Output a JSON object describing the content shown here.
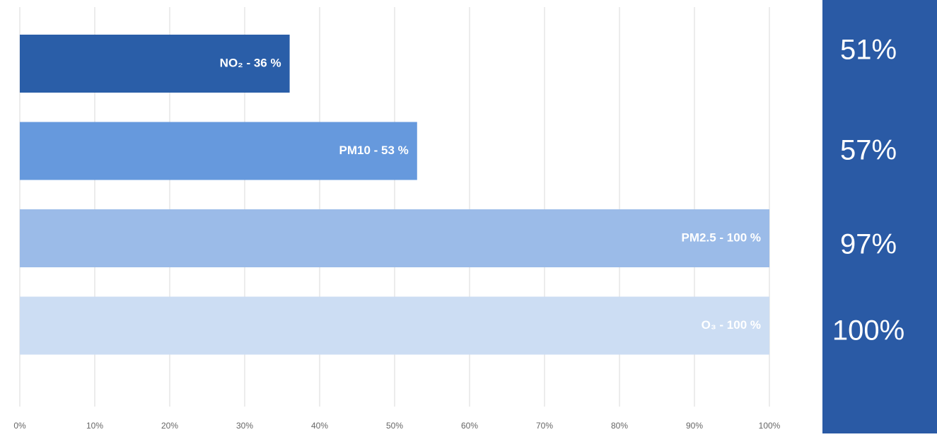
{
  "chart_data": {
    "type": "barh",
    "values": [
      36,
      53,
      100,
      100
    ],
    "value_labels": [
      "NO₂ - 36 %",
      "PM10 - 53 %",
      "PM2.5 - 100 %",
      "O₃ - 100 %"
    ],
    "colors": [
      "#2a5ea8",
      "#6699dd",
      "#9bbbe8",
      "#ccddf3"
    ],
    "xlim": [
      0,
      100
    ],
    "xticks": [
      {
        "value": 0,
        "label": "0%"
      },
      {
        "value": 10,
        "label": "10%"
      },
      {
        "value": 20,
        "label": "20%"
      },
      {
        "value": 30,
        "label": "30%"
      },
      {
        "value": 40,
        "label": "40%"
      },
      {
        "value": 50,
        "label": "50%"
      },
      {
        "value": 60,
        "label": "60%"
      },
      {
        "value": 70,
        "label": "70%"
      },
      {
        "value": 80,
        "label": "80%"
      },
      {
        "value": 90,
        "label": "90%"
      },
      {
        "value": 100,
        "label": "100%"
      }
    ],
    "grid": true
  },
  "side_panel": {
    "color": "#2a5aa5",
    "items": [
      "51%",
      "57%",
      "97%",
      "100%"
    ]
  }
}
